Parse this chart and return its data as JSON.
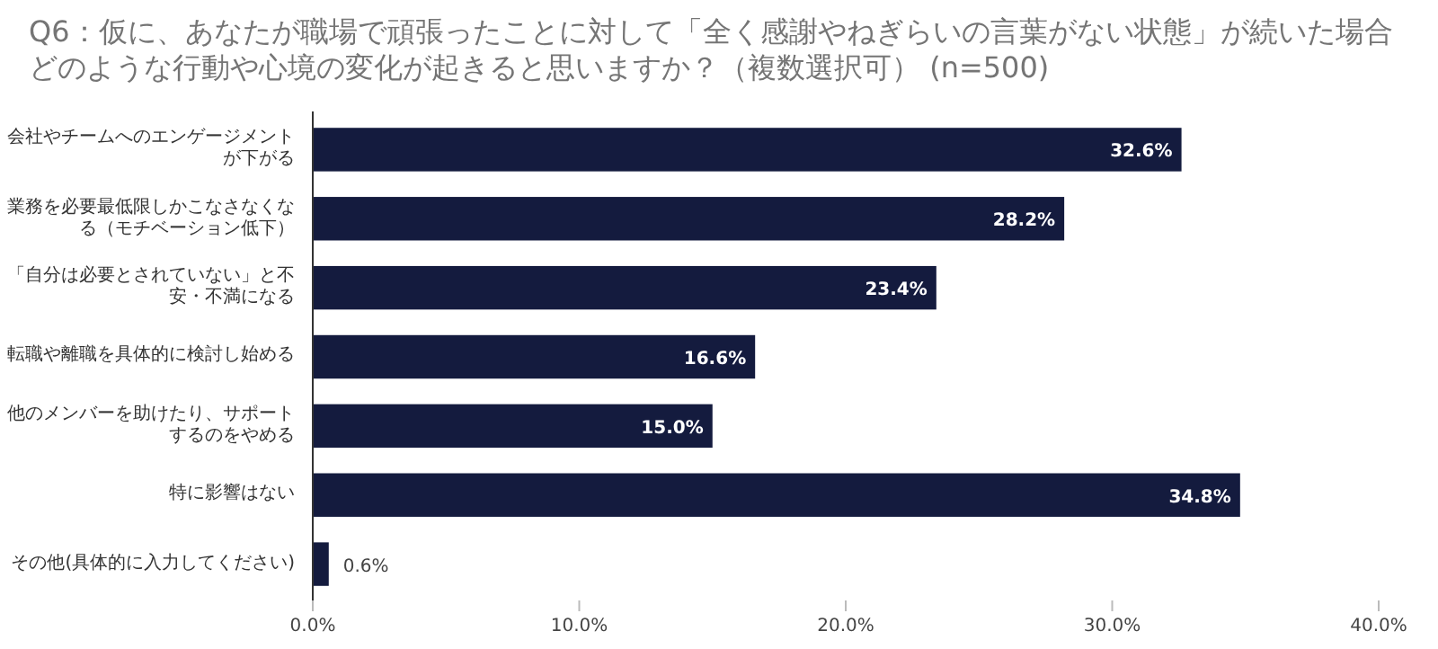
{
  "chart_data": {
    "type": "bar",
    "orientation": "horizontal",
    "title": "Q6：仮に、あなたが職場で頑張ったことに対して「全く感謝やねぎらいの言葉がない状態」が続いた場合どのような行動や心境の変化が起きると思いますか？（複数選択可） (n=500)",
    "categories": [
      "会社やチームへのエンゲージメントが下がる",
      "業務を必要最低限しかこなさなくなる（モチベーション低下）",
      "「自分は必要とされていない」と不安・不満になる",
      "転職や離職を具体的に検討し始める",
      "他のメンバーを助けたり、サポートするのをやめる",
      "特に影響はない",
      "その他(具体的に入力してください)"
    ],
    "values": [
      32.6,
      28.2,
      23.4,
      16.6,
      15.0,
      34.8,
      0.6
    ],
    "value_labels": [
      "32.6%",
      "28.2%",
      "23.4%",
      "16.6%",
      "15.0%",
      "34.8%",
      "0.6%"
    ],
    "color": "#141b3e",
    "xlim": [
      0,
      40
    ],
    "xticks": [
      {
        "value": 0,
        "label": "0.0%"
      },
      {
        "value": 10,
        "label": "10.0%"
      },
      {
        "value": 20,
        "label": "20.0%"
      },
      {
        "value": 30,
        "label": "30.0%"
      },
      {
        "value": 40,
        "label": "40.0%"
      }
    ]
  }
}
